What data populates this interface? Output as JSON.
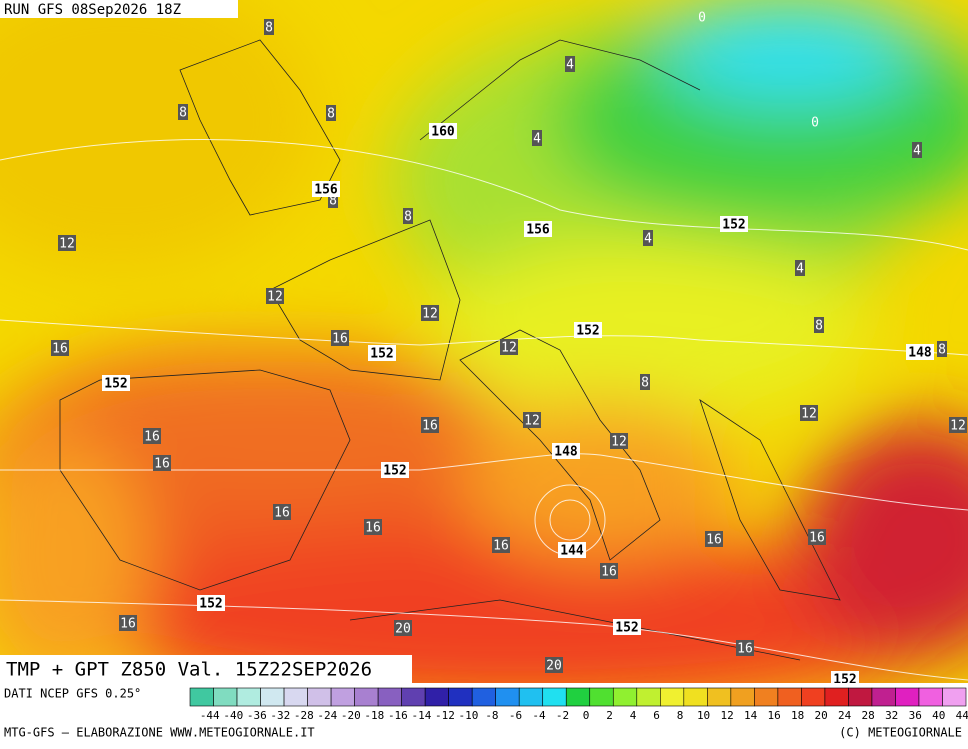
{
  "header": {
    "run": "RUN GFS 08Sep2026 18Z"
  },
  "map": {
    "field_title": "TMP + GPT Z850 Val. 15Z22SEP2026",
    "temperature_labels": [
      "8",
      "4",
      "8",
      "8",
      "4",
      "4",
      "8",
      "8",
      "12",
      "4",
      "4",
      "12",
      "12",
      "8",
      "16",
      "16",
      "12",
      "8",
      "8",
      "12",
      "16",
      "16",
      "12",
      "12",
      "16",
      "12",
      "16",
      "16",
      "16",
      "16",
      "16",
      "16",
      "16",
      "16",
      "20",
      "20",
      "0",
      "0"
    ],
    "height_labels": [
      "160",
      "156",
      "156",
      "152",
      "152",
      "152",
      "148",
      "152",
      "148",
      "152",
      "144",
      "152",
      "152",
      "152"
    ]
  },
  "legend": {
    "source": "DATI NCEP GFS 0.25°",
    "ticks": [
      -44,
      -40,
      -36,
      -32,
      -28,
      -24,
      -20,
      -18,
      -16,
      -14,
      -12,
      -10,
      -8,
      -6,
      -4,
      -2,
      0,
      2,
      4,
      6,
      8,
      10,
      12,
      14,
      16,
      18,
      20,
      24,
      28,
      32,
      36,
      40,
      44
    ],
    "colors": [
      "#40c8a0",
      "#80dcc0",
      "#b0ece0",
      "#d0e8f0",
      "#d8d8f0",
      "#d0c0e8",
      "#c0a0e0",
      "#a880d0",
      "#8860c0",
      "#6040b0",
      "#3020a8",
      "#2030c0",
      "#2060e0",
      "#2090f0",
      "#20c0f0",
      "#20e0f0",
      "#20d040",
      "#50e030",
      "#90f030",
      "#c0f030",
      "#f0f030",
      "#f0e020",
      "#f0c020",
      "#f0a020",
      "#f08020",
      "#f06020",
      "#f04020",
      "#e02020",
      "#c01840",
      "#c02090",
      "#e020c0",
      "#f060e0",
      "#f0a0f0"
    ]
  },
  "footer": {
    "left": "MTG-GFS – ELABORAZIONE WWW.METEOGIORNALE.IT",
    "right": "(C) METEOGIORNALE"
  }
}
